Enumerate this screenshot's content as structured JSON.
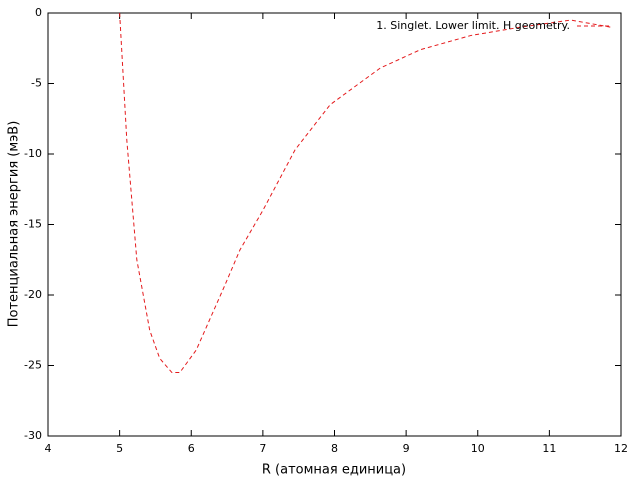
{
  "chart_data": {
    "type": "line",
    "x_label": "R (атомная единица)",
    "y_label": "Потенциальная энергия (мэВ)",
    "xlim": [
      4,
      12
    ],
    "ylim": [
      -30,
      0
    ],
    "xticks": [
      4,
      5,
      6,
      7,
      8,
      9,
      10,
      11,
      12
    ],
    "yticks": [
      -30,
      -25,
      -20,
      -15,
      -10,
      -5,
      0
    ],
    "legend": "upper right",
    "series": [
      {
        "name": "1. Singlet. Lower limit. H geometry.",
        "color": "#e41a1c",
        "x": [
          5.0,
          5.1,
          5.24,
          5.42,
          5.56,
          5.73,
          5.84,
          6.07,
          6.47,
          6.68,
          7.0,
          7.45,
          7.94,
          8.64,
          9.2,
          9.9,
          10.6,
          11.3,
          11.85
        ],
        "values": [
          0,
          -9,
          -17.5,
          -22.5,
          -24.5,
          -25.5,
          -25.5,
          -23.9,
          -19.3,
          -16.8,
          -14,
          -9.7,
          -6.5,
          -3.9,
          -2.6,
          -1.6,
          -1.0,
          -0.5,
          -1.0
        ]
      }
    ]
  }
}
